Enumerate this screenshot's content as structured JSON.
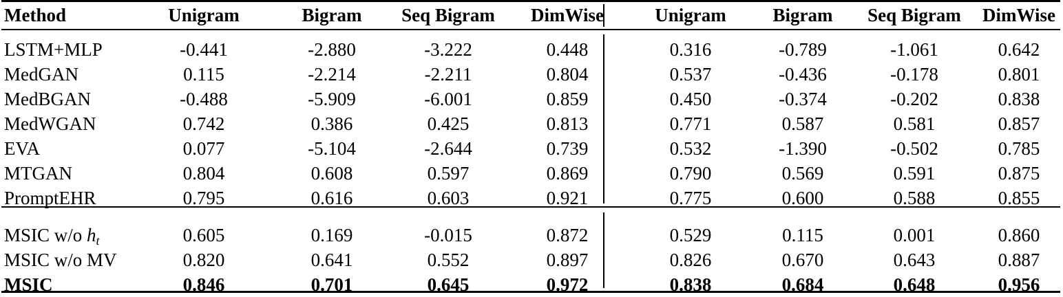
{
  "header": {
    "method": "Method",
    "group1": [
      "Unigram",
      "Bigram",
      "Seq Bigram",
      "DimWise"
    ],
    "group2": [
      "Unigram",
      "Bigram",
      "Seq Bigram",
      "DimWise"
    ]
  },
  "baselines": [
    {
      "method": "LSTM+MLP",
      "values": [
        "-0.441",
        "-2.880",
        "-3.222",
        "0.448",
        "0.316",
        "-0.789",
        "-1.061",
        "0.642"
      ]
    },
    {
      "method": "MedGAN",
      "values": [
        "0.115",
        "-2.214",
        "-2.211",
        "0.804",
        "0.537",
        "-0.436",
        "-0.178",
        "0.801"
      ]
    },
    {
      "method": "MedBGAN",
      "values": [
        "-0.488",
        "-5.909",
        "-6.001",
        "0.859",
        "0.450",
        "-0.374",
        "-0.202",
        "0.838"
      ]
    },
    {
      "method": "MedWGAN",
      "values": [
        "0.742",
        "0.386",
        "0.425",
        "0.813",
        "0.771",
        "0.587",
        "0.581",
        "0.857"
      ]
    },
    {
      "method": "EVA",
      "values": [
        "0.077",
        "-5.104",
        "-2.644",
        "0.739",
        "0.532",
        "-1.390",
        "-0.502",
        "0.785"
      ]
    },
    {
      "method": "MTGAN",
      "values": [
        "0.804",
        "0.608",
        "0.597",
        "0.869",
        "0.790",
        "0.569",
        "0.591",
        "0.875"
      ]
    },
    {
      "method": "PromptEHR",
      "values": [
        "0.795",
        "0.616",
        "0.603",
        "0.921",
        "0.775",
        "0.600",
        "0.588",
        "0.855"
      ]
    }
  ],
  "ablations": [
    {
      "method_prefix": "MSIC w/o ",
      "method_var": "h",
      "method_sub": "t",
      "values": [
        "0.605",
        "0.169",
        "-0.015",
        "0.872",
        "0.529",
        "0.115",
        "0.001",
        "0.860"
      ]
    },
    {
      "method": "MSIC w/o MV",
      "values": [
        "0.820",
        "0.641",
        "0.552",
        "0.897",
        "0.826",
        "0.670",
        "0.643",
        "0.887"
      ]
    },
    {
      "method": "MSIC",
      "values": [
        "0.846",
        "0.701",
        "0.645",
        "0.972",
        "0.838",
        "0.684",
        "0.648",
        "0.956"
      ]
    }
  ]
}
